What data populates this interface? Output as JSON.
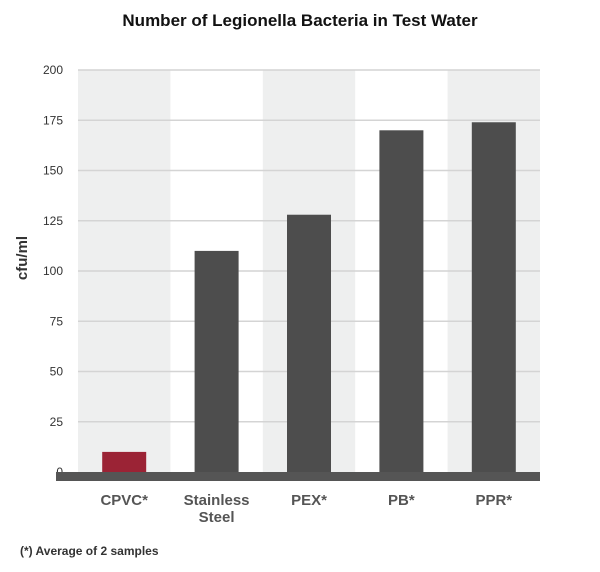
{
  "chart_data": {
    "type": "bar",
    "title": "Number of Legionella Bacteria in Test Water",
    "ylabel": "cfu/ml",
    "xlabel": "",
    "ylim": [
      0,
      200
    ],
    "yticks": [
      0,
      25,
      50,
      75,
      100,
      125,
      150,
      175,
      200
    ],
    "categories": [
      [
        "CPVC*"
      ],
      [
        "Stainless",
        "Steel"
      ],
      [
        "PEX*"
      ],
      [
        "PB*"
      ],
      [
        "PPR*"
      ]
    ],
    "values": [
      10,
      110,
      128,
      170,
      174
    ],
    "grid": true,
    "colors": {
      "highlight_bar": "#9b2335",
      "bar": "#4d4d4d",
      "band": "#eeefef",
      "grid": "#d4d4d4",
      "baseline": "#555555"
    },
    "footnote": "(*) Average of 2 samples"
  }
}
